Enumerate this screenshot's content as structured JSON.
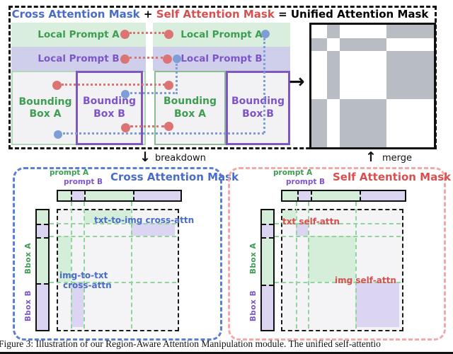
{
  "title": {
    "cross": "Cross Attention Mask",
    "plus": "+",
    "self": "Self Attention Mask",
    "equals": "=",
    "unified": "Unified Attention Mask"
  },
  "top": {
    "local_prompt_a": "Local Prompt A",
    "local_prompt_b": "Local Prompt B",
    "bounding_box_a": "Bounding Box A",
    "bounding_box_b": "Bounding Box B"
  },
  "flow": {
    "breakdown": "breakdown",
    "merge": "merge"
  },
  "icons": {
    "right_arrow": "→",
    "down_arrow": "↓",
    "up_arrow": "↑"
  },
  "unified_mask": {
    "col_fracs": [
      13,
      10,
      38.5,
      38.5
    ],
    "row_fracs": [
      11,
      10.5,
      39,
      39.5
    ],
    "grid": [
      [
        0,
        1,
        0,
        1
      ],
      [
        1,
        0,
        1,
        0
      ],
      [
        0,
        1,
        0,
        1
      ],
      [
        1,
        0,
        1,
        0
      ]
    ]
  },
  "cross_panel": {
    "title": "Cross Attention Mask",
    "prompt_a": "prompt A",
    "prompt_b": "prompt B",
    "bbox_a": "Bbox A",
    "bbox_b": "Bbox B",
    "txt_to_img": "txt-to-img cross-attn",
    "img_to_txt_line1": "img-to-txt",
    "img_to_txt_line2": "cross-attn"
  },
  "self_panel": {
    "title": "Self Attention Mask",
    "prompt_a": "prompt A",
    "prompt_b": "prompt B",
    "bbox_a": "Bbox A",
    "bbox_b": "Bbox B",
    "txt_self": "txt self-attn",
    "img_self": "img self-attn"
  },
  "caption": {
    "text": "Figure 3: Illustration of our Region-Aware Attention Manipulation module. The unified self-attentio"
  },
  "colors": {
    "green_text": "#3d9e53",
    "purple_text": "#7d55c8",
    "blue_text": "#4a6cc9",
    "red_text": "#d94f4f",
    "green_bg": "#d9eedd",
    "purple_bg": "#cfcfec",
    "block_green": "#d5eeda",
    "block_purple": "#dcd5f2",
    "gray_bg": "#f2f1f3",
    "matrix_bg": "#f4f4f6",
    "mask_gray": "#b8bdc4",
    "red_dot": "#dd7474",
    "blue_dot": "#7f9ed8",
    "purple_border": "#7e57c2",
    "green_border": "#8abd92",
    "light_green_border": "#b2d8ba",
    "grid_green": "#90d69c",
    "blue_dash": "#5b7ed7",
    "pink_dash": "#f4a9a9"
  }
}
